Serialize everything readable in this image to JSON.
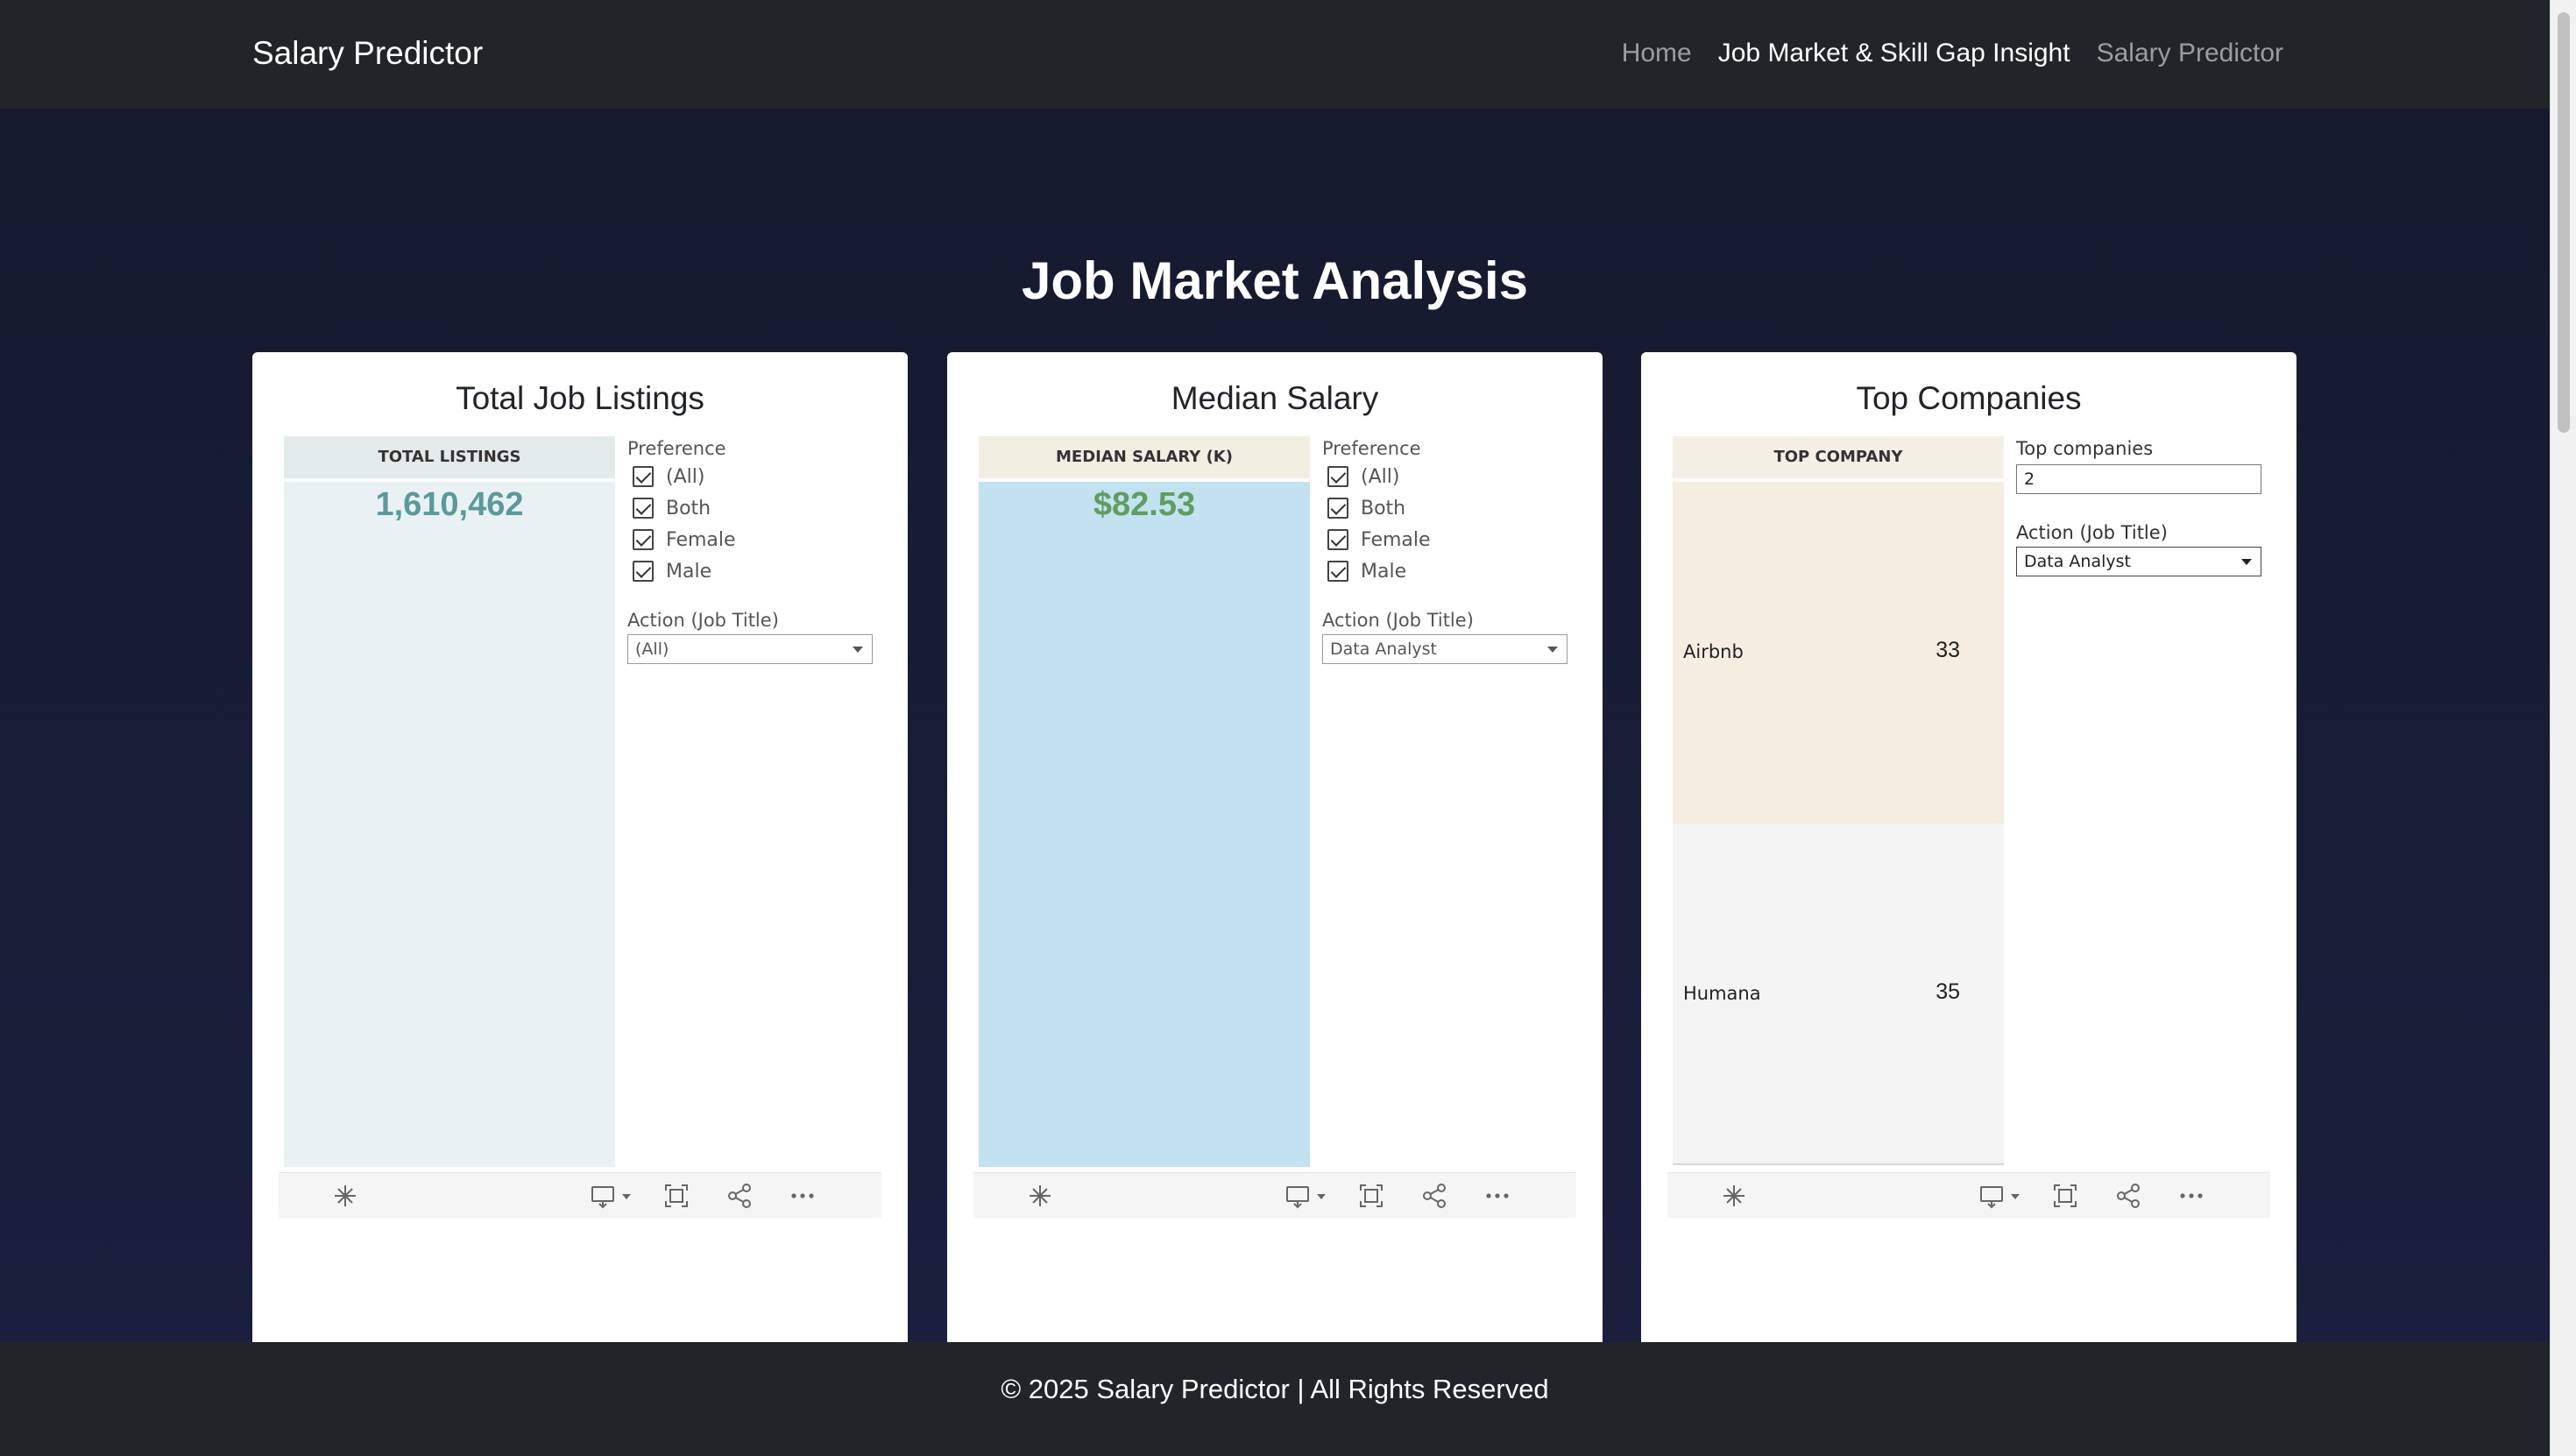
{
  "nav": {
    "brand": "Salary Predictor",
    "links": [
      "Home",
      "Job Market & Skill Gap Insight",
      "Salary Predictor"
    ],
    "active_index": 1
  },
  "main": {
    "title": "Job Market Analysis"
  },
  "cards": {
    "listings": {
      "title": "Total Job Listings",
      "header": "TOTAL LISTINGS",
      "value": "1,610,462",
      "value_color": "#5a9a9a",
      "header_bg": "#e3ebea",
      "body_bg": "#e9f1f3",
      "preference_label": "Preference",
      "preferences": [
        "(All)",
        "Both",
        "Female",
        "Male"
      ],
      "action_label": "Action (Job Title)",
      "action_value": "(All)"
    },
    "salary": {
      "title": "Median Salary",
      "header": "MEDIAN SALARY (K)",
      "value": "$82.53",
      "value_color": "#5f9e5f",
      "header_bg": "#f0efe2",
      "body_bg": "#c2e1f1",
      "preference_label": "Preference",
      "preferences": [
        "(All)",
        "Both",
        "Female",
        "Male"
      ],
      "action_label": "Action (Job Title)",
      "action_value": "Data Analyst"
    },
    "companies": {
      "title": "Top Companies",
      "header": "TOP COMPANY",
      "header_bg": "#f3efe4",
      "rows": [
        {
          "name": "Airbnb",
          "count": "33",
          "bg": "#f4ede0"
        },
        {
          "name": "Humana",
          "count": "35",
          "bg": "#f4f4f4"
        }
      ],
      "top_label": "Top companies",
      "top_value": "2",
      "action_label": "Action (Job Title)",
      "action_value": "Data Analyst"
    }
  },
  "toolbar_icons": [
    "viz-home-icon",
    "download-icon",
    "fullscreen-icon",
    "share-icon",
    "more-icon"
  ],
  "footer": {
    "text": "© 2025 Salary Predictor | All Rights Reserved"
  }
}
